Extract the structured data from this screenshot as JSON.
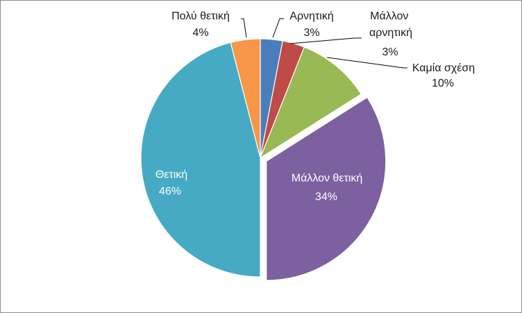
{
  "chart_data": {
    "type": "pie",
    "title": "",
    "categories": [
      "Αρνητική",
      "Μάλλον αρνητική",
      "Καμία σχέση",
      "Μάλλον θετική",
      "Θετική",
      "Πολύ θετική"
    ],
    "values": [
      3,
      3,
      10,
      34,
      46,
      4
    ],
    "value_labels": [
      "3%",
      "3%",
      "10%",
      "34%",
      "46%",
      "4%"
    ],
    "colors": [
      "#4a7ebb",
      "#be4b48",
      "#98b954",
      "#7d60a0",
      "#46aac5",
      "#f79646"
    ],
    "legend": "none",
    "exploded_slice": "Μάλλον θετική"
  }
}
